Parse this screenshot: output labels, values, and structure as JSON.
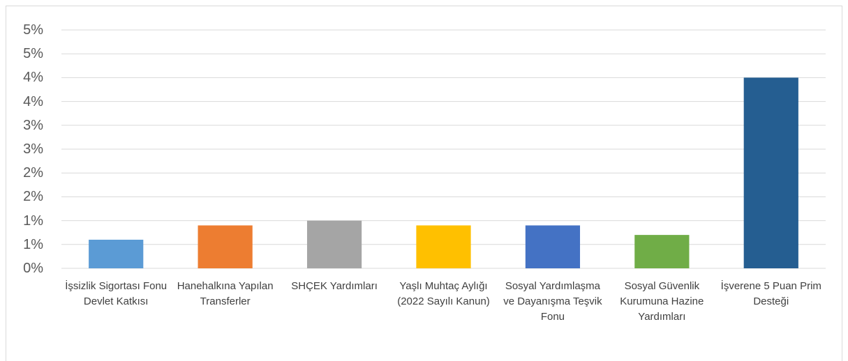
{
  "chart_data": {
    "type": "bar",
    "categories": [
      "İşsizlik Sigortası Fonu Devlet Katkısı",
      "Hanehalkına Yapılan Transferler",
      "SHÇEK Yardımları",
      "Yaşlı Muhtaç Aylığı (2022 Sayılı Kanun)",
      "Sosyal Yardımlaşma ve Dayanışma Teşvik Fonu",
      "Sosyal Güvenlik Kurumuna Hazine Yardımları",
      "İşverene 5 Puan Prim Desteği"
    ],
    "values": [
      0.6,
      0.9,
      1.0,
      0.9,
      0.9,
      0.7,
      4.0
    ],
    "colors": [
      "#5b9bd5",
      "#ed7d31",
      "#a5a5a5",
      "#ffc000",
      "#4472c4",
      "#70ad47",
      "#255e91"
    ],
    "ylim": [
      0,
      5
    ],
    "yticks": [
      {
        "value": 0,
        "label": "0%"
      },
      {
        "value": 0.5,
        "label": "1%"
      },
      {
        "value": 1,
        "label": "1%"
      },
      {
        "value": 1.5,
        "label": "2%"
      },
      {
        "value": 2,
        "label": "2%"
      },
      {
        "value": 2.5,
        "label": "3%"
      },
      {
        "value": 3,
        "label": "3%"
      },
      {
        "value": 3.5,
        "label": "4%"
      },
      {
        "value": 4,
        "label": "4%"
      },
      {
        "value": 4.5,
        "label": "5%"
      },
      {
        "value": 5,
        "label": "5%"
      }
    ],
    "grid": true
  }
}
